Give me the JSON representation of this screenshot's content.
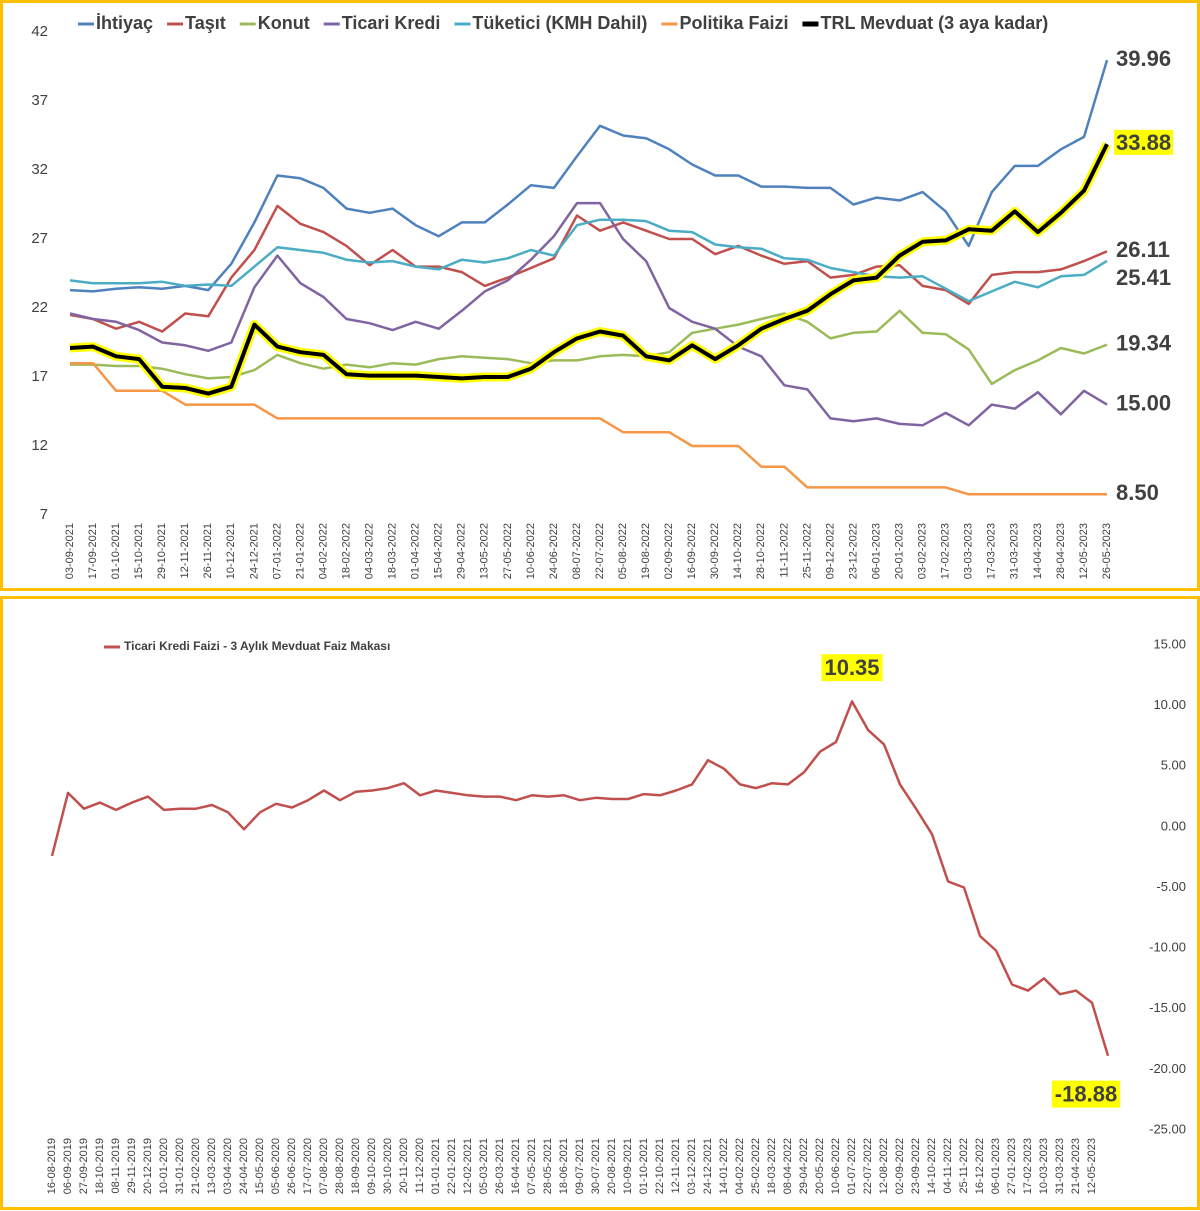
{
  "chart_data": [
    {
      "type": "line",
      "categories": [
        "03-09-2021",
        "17-09-2021",
        "01-10-2021",
        "15-10-2021",
        "29-10-2021",
        "12-11-2021",
        "26-11-2021",
        "10-12-2021",
        "24-12-2021",
        "07-01-2022",
        "21-01-2022",
        "04-02-2022",
        "18-02-2022",
        "04-03-2022",
        "18-03-2022",
        "01-04-2022",
        "15-04-2022",
        "29-04-2022",
        "13-05-2022",
        "27-05-2022",
        "10-06-2022",
        "24-06-2022",
        "08-07-2022",
        "22-07-2022",
        "05-08-2022",
        "19-08-2022",
        "02-09-2022",
        "16-09-2022",
        "30-09-2022",
        "14-10-2022",
        "28-10-2022",
        "11-11-2022",
        "25-11-2022",
        "09-12-2022",
        "23-12-2022",
        "06-01-2023",
        "20-01-2023",
        "03-02-2023",
        "17-02-2023",
        "03-03-2023",
        "17-03-2023",
        "31-03-2023",
        "14-04-2023",
        "28-04-2023",
        "12-05-2023",
        "26-05-2023"
      ],
      "ylim": [
        7,
        42
      ],
      "yticks": [
        7,
        12,
        17,
        22,
        27,
        32,
        37,
        42
      ],
      "grid": false,
      "y_axis_side": "left",
      "series": [
        {
          "name": "İhtiyaç",
          "color": "#4F81BD",
          "values": [
            23.3,
            23.2,
            23.4,
            23.5,
            23.4,
            23.6,
            23.3,
            25.2,
            28.2,
            31.6,
            31.4,
            30.7,
            29.2,
            28.9,
            29.2,
            28.0,
            27.2,
            28.2,
            28.2,
            29.5,
            30.9,
            30.7,
            33.0,
            35.2,
            34.5,
            34.3,
            33.5,
            32.4,
            31.6,
            31.6,
            30.8,
            30.8,
            30.7,
            30.7,
            29.5,
            30.0,
            29.8,
            30.4,
            29.0,
            26.5,
            30.4,
            32.3,
            32.3,
            33.5,
            34.4,
            39.96
          ],
          "last_label": "39.96"
        },
        {
          "name": "Taşıt",
          "color": "#C0504D",
          "values": [
            21.5,
            21.2,
            20.5,
            21.0,
            20.3,
            21.6,
            21.4,
            24.2,
            26.2,
            29.4,
            28.1,
            27.5,
            26.5,
            25.1,
            26.2,
            25.0,
            25.0,
            24.6,
            23.6,
            24.2,
            24.9,
            25.6,
            28.7,
            27.6,
            28.2,
            27.6,
            27.0,
            27.0,
            25.9,
            26.5,
            25.8,
            25.2,
            25.4,
            24.2,
            24.4,
            25.0,
            25.1,
            23.6,
            23.3,
            22.3,
            24.4,
            24.6,
            24.6,
            24.8,
            25.4,
            26.11
          ],
          "last_label": "26.11"
        },
        {
          "name": "Konut",
          "color": "#9BBB59",
          "values": [
            17.9,
            17.9,
            17.8,
            17.8,
            17.6,
            17.2,
            16.9,
            17.0,
            17.5,
            18.6,
            18.0,
            17.6,
            17.9,
            17.7,
            18.0,
            17.9,
            18.3,
            18.5,
            18.4,
            18.3,
            18.0,
            18.2,
            18.2,
            18.5,
            18.6,
            18.5,
            18.8,
            20.2,
            20.5,
            20.8,
            21.2,
            21.6,
            21.0,
            19.8,
            20.2,
            20.3,
            21.8,
            20.2,
            20.1,
            19.0,
            16.5,
            17.5,
            18.2,
            19.1,
            18.7,
            19.34
          ],
          "last_label": "19.34"
        },
        {
          "name": "Ticari Kredi",
          "color": "#8064A2",
          "values": [
            21.6,
            21.2,
            21.0,
            20.4,
            19.5,
            19.3,
            18.9,
            19.5,
            23.5,
            25.8,
            23.8,
            22.8,
            21.2,
            20.9,
            20.4,
            21.0,
            20.5,
            21.8,
            23.2,
            24.0,
            25.5,
            27.2,
            29.6,
            29.6,
            27.0,
            25.4,
            22.0,
            21.0,
            20.5,
            19.2,
            18.5,
            16.4,
            16.1,
            14.0,
            13.8,
            14.0,
            13.6,
            13.5,
            14.4,
            13.5,
            15.0,
            14.7,
            15.9,
            14.3,
            16.0,
            15
          ],
          "last_label": "15.00"
        },
        {
          "name": "Tüketici (KMH Dahil)",
          "color": "#4BACC6",
          "values": [
            24.0,
            23.8,
            23.8,
            23.8,
            23.9,
            23.6,
            23.7,
            23.6,
            25.0,
            26.4,
            26.2,
            26.0,
            25.5,
            25.3,
            25.4,
            25.0,
            24.8,
            25.5,
            25.3,
            25.6,
            26.2,
            25.8,
            28.0,
            28.4,
            28.4,
            28.3,
            27.6,
            27.5,
            26.6,
            26.4,
            26.3,
            25.6,
            25.5,
            24.9,
            24.6,
            24.3,
            24.2,
            24.3,
            23.4,
            22.5,
            23.2,
            23.9,
            23.5,
            24.3,
            24.4,
            25.41
          ],
          "last_label": "25.41"
        },
        {
          "name": "Politika Faizi",
          "color": "#F79646",
          "values": [
            18,
            18,
            16,
            16,
            16,
            15,
            15,
            15,
            15,
            14,
            14,
            14,
            14,
            14,
            14,
            14,
            14,
            14,
            14,
            14,
            14,
            14,
            14,
            14,
            13,
            13,
            13,
            12,
            12,
            12,
            10.5,
            10.5,
            9,
            9,
            9,
            9,
            9,
            9,
            9,
            8.5,
            8.5,
            8.5,
            8.5,
            8.5,
            8.5,
            8.5
          ],
          "last_label": "8.50"
        },
        {
          "name": "TRL Mevduat (3 aya kadar)",
          "color": "#000000",
          "halo": "#FFFF00",
          "values": [
            19.1,
            19.2,
            18.5,
            18.3,
            16.3,
            16.2,
            15.8,
            16.3,
            20.8,
            19.2,
            18.8,
            18.6,
            17.2,
            17.1,
            17.1,
            17.1,
            17.0,
            16.9,
            17.0,
            17.0,
            17.6,
            18.8,
            19.8,
            20.3,
            20.0,
            18.5,
            18.2,
            19.3,
            18.3,
            19.3,
            20.5,
            21.2,
            21.8,
            23.0,
            24.0,
            24.2,
            25.8,
            26.8,
            26.9,
            27.7,
            27.6,
            29.0,
            27.5,
            28.9,
            30.5,
            33.88
          ],
          "last_label": "33.88"
        }
      ]
    },
    {
      "type": "line",
      "categories": [
        "16-08-2019",
        "06-09-2019",
        "27-09-2019",
        "18-10-2019",
        "08-11-2019",
        "29-11-2019",
        "20-12-2019",
        "10-01-2020",
        "31-01-2020",
        "21-02-2020",
        "13-03-2020",
        "03-04-2020",
        "24-04-2020",
        "15-05-2020",
        "05-06-2020",
        "26-06-2020",
        "17-07-2020",
        "07-08-2020",
        "28-08-2020",
        "18-09-2020",
        "09-10-2020",
        "30-10-2020",
        "20-11-2020",
        "11-12-2020",
        "01-01-2021",
        "22-01-2021",
        "12-02-2021",
        "05-03-2021",
        "26-03-2021",
        "16-04-2021",
        "07-05-2021",
        "28-05-2021",
        "18-06-2021",
        "09-07-2021",
        "30-07-2021",
        "20-08-2021",
        "10-09-2021",
        "01-10-2021",
        "22-10-2021",
        "12-11-2021",
        "03-12-2021",
        "24-12-2021",
        "14-01-2022",
        "04-02-2022",
        "25-02-2022",
        "18-03-2022",
        "08-04-2022",
        "29-04-2022",
        "20-05-2022",
        "10-06-2022",
        "01-07-2022",
        "22-07-2022",
        "12-08-2022",
        "02-09-2022",
        "23-09-2022",
        "14-10-2022",
        "04-11-2022",
        "25-11-2022",
        "16-12-2022",
        "06-01-2023",
        "27-01-2023",
        "17-02-2023",
        "10-03-2023",
        "31-03-2023",
        "21-04-2023",
        "12-05-2023",
        null
      ],
      "ylim": [
        -25,
        15
      ],
      "yticks": [
        {
          "value": -25,
          "label": "-25.00"
        },
        {
          "value": -20,
          "label": "-20.00"
        },
        {
          "value": -15,
          "label": "-15.00"
        },
        {
          "value": -10,
          "label": "-10.00"
        },
        {
          "value": -5,
          "label": "-5.00"
        },
        {
          "value": 0,
          "label": "0.00"
        },
        {
          "value": 5,
          "label": "5.00"
        },
        {
          "value": 10,
          "label": "10.00"
        },
        {
          "value": 15,
          "label": "15.00"
        }
      ],
      "grid": false,
      "y_axis_side": "right",
      "highlight_color": "#FFFF00",
      "series": [
        {
          "name": "Ticari Kredi Faizi - 3 Aylık Mevduat Faiz Makası",
          "color": "#C0504D",
          "values": [
            -2.4,
            2.8,
            1.5,
            2.0,
            1.4,
            2.0,
            2.5,
            1.4,
            1.5,
            1.5,
            1.8,
            1.2,
            -0.2,
            1.2,
            1.9,
            1.6,
            2.2,
            3.0,
            2.2,
            2.9,
            3.0,
            3.2,
            3.6,
            2.6,
            3.0,
            2.8,
            2.6,
            2.5,
            2.5,
            2.2,
            2.6,
            2.5,
            2.6,
            2.2,
            2.4,
            2.3,
            2.3,
            2.7,
            2.6,
            3.0,
            3.5,
            5.5,
            4.8,
            3.5,
            3.2,
            3.6,
            3.5,
            4.5,
            6.2,
            7.0,
            10.35,
            8.0,
            6.8,
            3.5,
            1.5,
            -0.6,
            -4.5,
            -5.0,
            -9.0,
            -10.2,
            -13.0,
            -13.5,
            -12.5,
            -13.8,
            -13.5,
            -14.5,
            -18.88
          ]
        }
      ]
    }
  ]
}
